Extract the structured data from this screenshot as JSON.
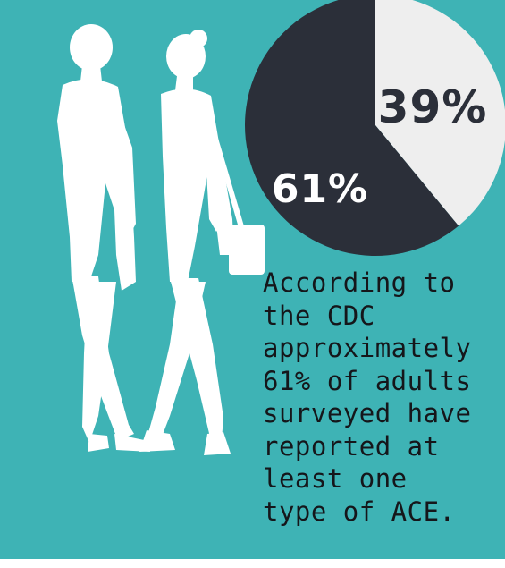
{
  "chart_data": {
    "type": "pie",
    "slices": [
      {
        "label": "61%",
        "value": 61,
        "color": "#2b2f39"
      },
      {
        "label": "39%",
        "value": 39,
        "color": "#eeeeee"
      }
    ],
    "start_angle_deg": 0,
    "direction": "clockwise-from-top: 39% slice first"
  },
  "caption": {
    "lines": [
      "According to",
      "the CDC",
      "approximately",
      "61% of adults",
      "surveyed have",
      "reported at",
      "least one",
      "type of ACE."
    ]
  },
  "colors": {
    "background": "#3eb3b5",
    "silhouette": "#ffffff",
    "dark_slice": "#2b2f39",
    "light_slice": "#eeeeee",
    "dark_label": "#ffffff",
    "light_label": "#2b2f39"
  },
  "illustration": {
    "icons": [
      "man-walking-silhouette-icon",
      "woman-walking-with-bag-silhouette-icon"
    ]
  }
}
